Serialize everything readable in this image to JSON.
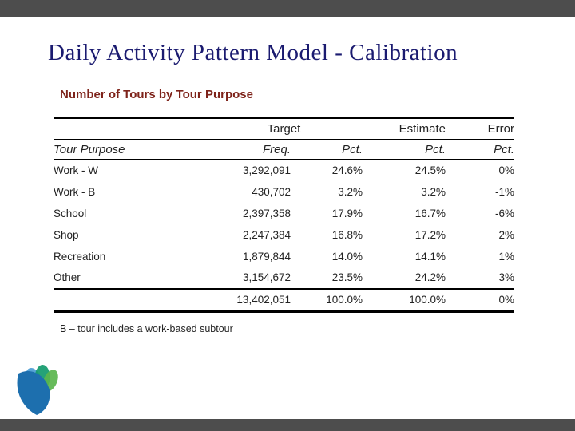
{
  "slide": {
    "title": "Daily Activity Pattern Model - Calibration",
    "subtitle": "Number of Tours by Tour Purpose",
    "footnote": "B – tour includes a work-based subtour"
  },
  "table": {
    "groups": [
      {
        "label": "Target",
        "span": 2
      },
      {
        "label": "Estimate",
        "span": 1
      },
      {
        "label": "Error",
        "span": 1
      }
    ],
    "headers": [
      "Tour Purpose",
      "Freq.",
      "Pct.",
      "Pct.",
      "Pct."
    ],
    "rows": [
      [
        "Work - W",
        "3,292,091",
        "24.6%",
        "24.5%",
        "0%"
      ],
      [
        "Work - B",
        "430,702",
        "3.2%",
        "3.2%",
        "-1%"
      ],
      [
        "School",
        "2,397,358",
        "17.9%",
        "16.7%",
        "-6%"
      ],
      [
        "Shop",
        "2,247,384",
        "16.8%",
        "17.2%",
        "2%"
      ],
      [
        "Recreation",
        "1,879,844",
        "14.0%",
        "14.1%",
        "1%"
      ],
      [
        "Other",
        "3,154,672",
        "23.5%",
        "24.2%",
        "3%"
      ]
    ],
    "total": [
      "",
      "13,402,051",
      "100.0%",
      "100.0%",
      "0%"
    ]
  },
  "colors": {
    "title_text": "#1b1b70",
    "subtitle_text": "#7e231a",
    "frame_bar": "#4d4d4d",
    "table_rule": "#000000",
    "logo_blue": "#1d6fae",
    "logo_light_blue": "#4a9cd4",
    "logo_teal": "#129a6d",
    "logo_green": "#5ab54d"
  },
  "logo": {
    "name": "petal-flower-logo"
  }
}
